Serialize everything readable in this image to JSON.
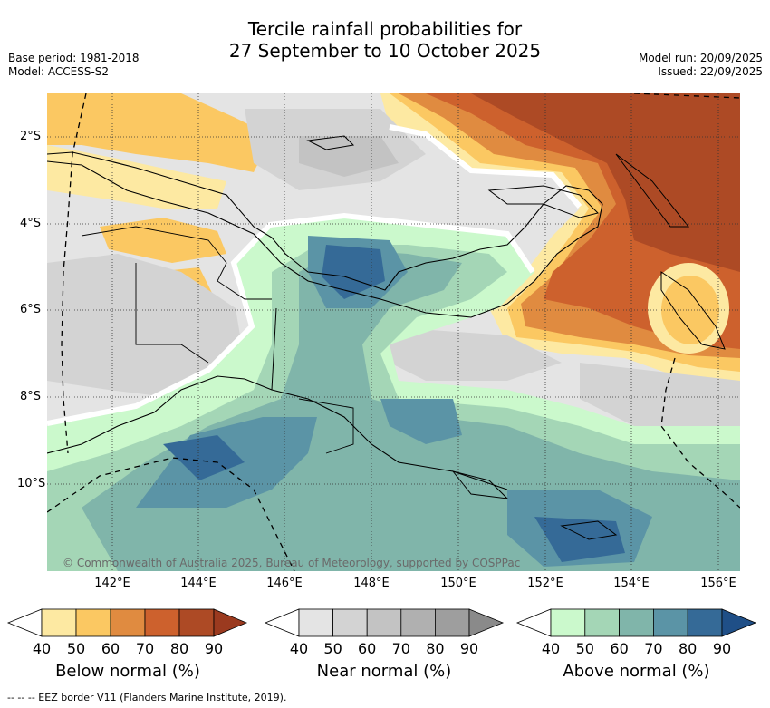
{
  "title_line1": "Tercile rainfall probabilities for",
  "title_line2": "27 September to 10 October 2025",
  "base_period": "Base period: 1981-2018",
  "model": "Model: ACCESS-S2",
  "model_run": "Model run: 20/09/2025",
  "issued": "Issued: 22/09/2025",
  "copyright": "© Commonwealth of Australia 2025, Bureau of Meteorology, supported by COSPPac",
  "footer": "--  --  -- EEZ border V11 (Flanders Marine Institute, 2019).",
  "lat_labels": [
    "2°S",
    "4°S",
    "6°S",
    "8°S",
    "10°S"
  ],
  "lon_labels": [
    "142°E",
    "144°E",
    "146°E",
    "148°E",
    "150°E",
    "152°E",
    "154°E",
    "156°E"
  ],
  "colorbars": [
    {
      "name": "below",
      "title": "Below normal (%)",
      "ticks": [
        "40",
        "50",
        "60",
        "70",
        "80",
        "90"
      ],
      "colors": [
        "#ffffff",
        "#fde9a2",
        "#fbc862",
        "#e08b40",
        "#cd612d",
        "#ad4a25",
        "#9b3a1f"
      ]
    },
    {
      "name": "near",
      "title": "Near normal (%)",
      "ticks": [
        "40",
        "50",
        "60",
        "70",
        "80",
        "90"
      ],
      "colors": [
        "#ffffff",
        "#e4e4e4",
        "#d3d3d3",
        "#c3c3c3",
        "#b0b0b0",
        "#9e9e9e",
        "#8a8a8a"
      ]
    },
    {
      "name": "above",
      "title": "Above normal (%)",
      "ticks": [
        "40",
        "50",
        "60",
        "70",
        "80",
        "90"
      ],
      "colors": [
        "#ffffff",
        "#cbf9cc",
        "#a4d6b6",
        "#80b5aa",
        "#5b94a6",
        "#356a97",
        "#1f4f87"
      ]
    }
  ]
}
